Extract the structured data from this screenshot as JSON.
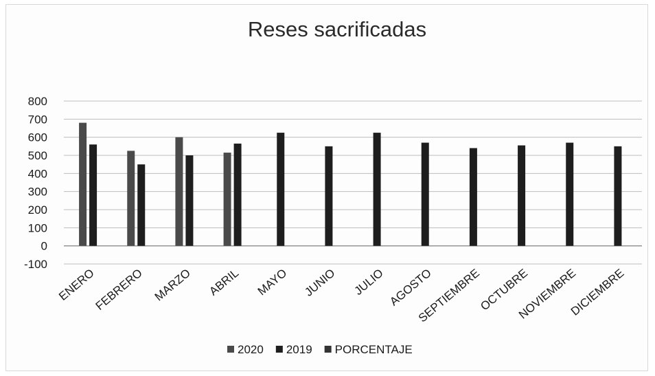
{
  "chart_data": {
    "type": "bar",
    "title": "Reses sacrificadas",
    "xlabel": "",
    "ylabel": "",
    "ylim": [
      -100,
      800
    ],
    "yticks": [
      -100,
      0,
      100,
      200,
      300,
      400,
      500,
      600,
      700,
      800
    ],
    "grid": true,
    "legend_position": "bottom",
    "categories": [
      "ENERO",
      "FEBRERO",
      "MARZO",
      "ABRIL",
      "MAYO",
      "JUNIO",
      "JULIO",
      "AGOSTO",
      "SEPTIEMBRE",
      "OCTUBRE",
      "NOVIEMBRE",
      "DICIEMBRE"
    ],
    "series": [
      {
        "name": "2020",
        "color": "#4a4a4a",
        "values": [
          680,
          525,
          600,
          515,
          null,
          null,
          null,
          null,
          null,
          null,
          null,
          null
        ]
      },
      {
        "name": "2019",
        "color": "#1e1e1e",
        "values": [
          560,
          450,
          500,
          565,
          625,
          550,
          625,
          570,
          540,
          555,
          570,
          550
        ]
      },
      {
        "name": "PORCENTAJE",
        "color": "#333333",
        "values": [
          null,
          null,
          null,
          null,
          null,
          null,
          null,
          null,
          null,
          null,
          null,
          null
        ]
      }
    ]
  }
}
